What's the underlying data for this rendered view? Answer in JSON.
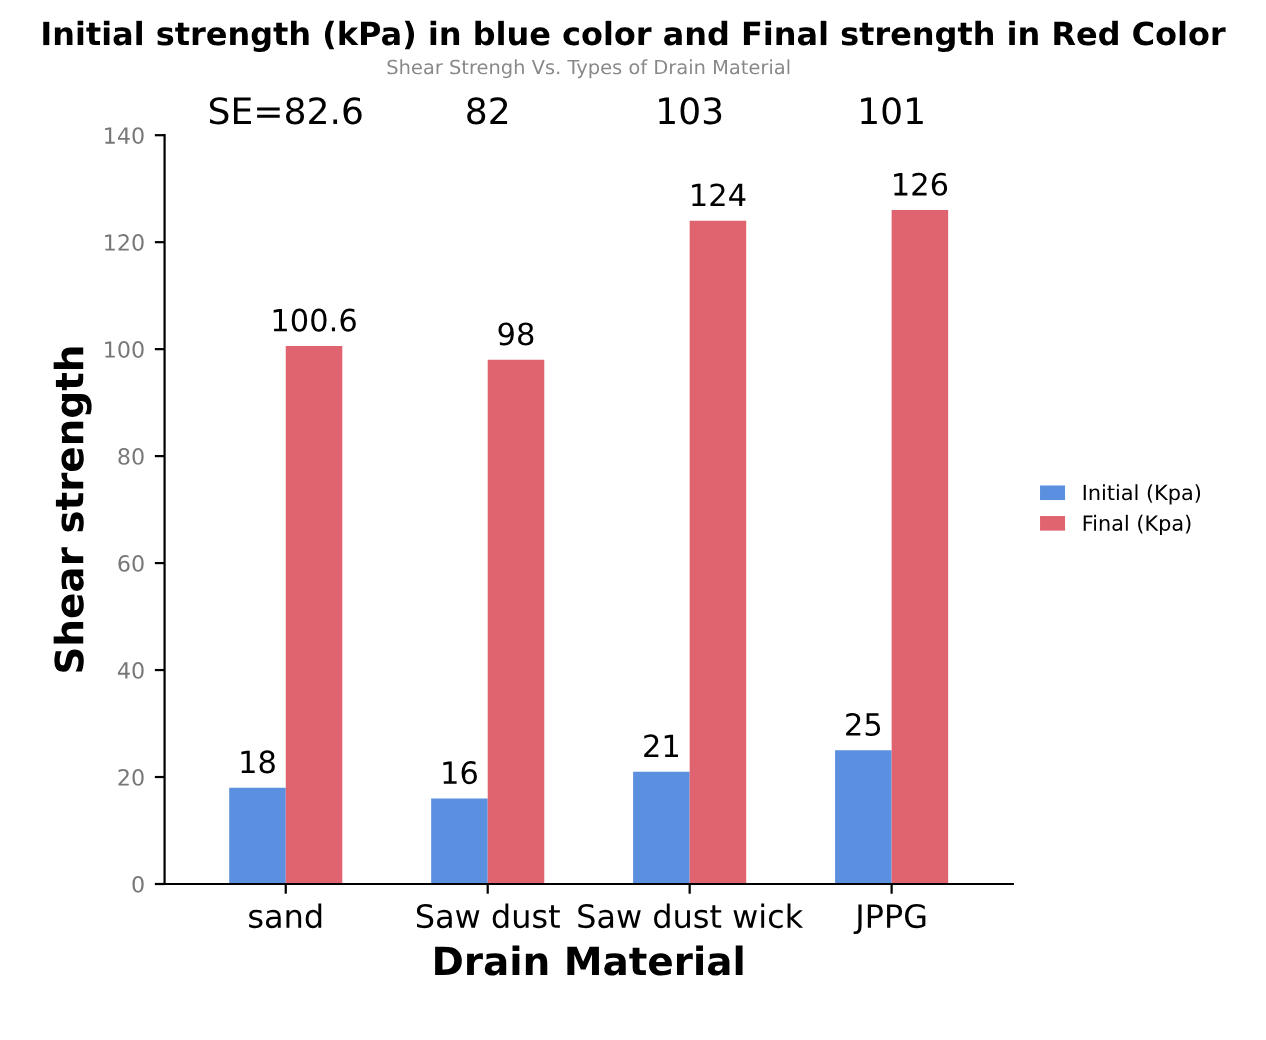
{
  "chart_data": {
    "type": "bar",
    "title": "Initial strength (kPa) in blue color and Final strength in Red Color",
    "subtitle": "Shear Strengh Vs. Types of Drain Material",
    "xlabel": "Drain Material",
    "ylabel": "Shear strength",
    "categories": [
      "sand",
      "Saw dust",
      "Saw dust wick",
      "JPPG"
    ],
    "series": [
      {
        "name": "Initial (Kpa)",
        "color": "#5b8fe0",
        "values": [
          18,
          16,
          21,
          25
        ]
      },
      {
        "name": "Final (Kpa)",
        "color": "#e06370",
        "values": [
          100.6,
          98,
          124,
          126
        ]
      }
    ],
    "annotations": [
      "SE=82.6",
      "82",
      "103",
      "101"
    ],
    "ylim": [
      0,
      140
    ],
    "yticks": [
      0,
      20,
      40,
      60,
      80,
      100,
      120,
      140
    ],
    "data_labels": true,
    "grid": false,
    "legend": "right"
  }
}
